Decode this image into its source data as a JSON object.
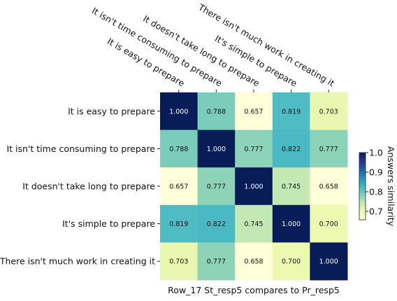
{
  "chart_data": {
    "type": "heatmap",
    "rows": [
      "It is easy to prepare",
      "It isn't time consuming to prepare",
      "It doesn't take long to prepare",
      "It's simple to prepare",
      "There isn't much work in creating it"
    ],
    "cols": [
      "It is easy to prepare",
      "It isn't time consuming to prepare",
      "It doesn't take long to prepare",
      "It's simple to prepare",
      "There isn't much work in creating it"
    ],
    "values": [
      [
        1.0,
        0.788,
        0.657,
        0.819,
        0.703
      ],
      [
        0.788,
        1.0,
        0.777,
        0.822,
        0.777
      ],
      [
        0.657,
        0.777,
        1.0,
        0.745,
        0.658
      ],
      [
        0.819,
        0.822,
        0.745,
        1.0,
        0.7
      ],
      [
        0.703,
        0.777,
        0.658,
        0.7,
        1.0
      ]
    ],
    "value_labels": [
      [
        "1.000",
        "0.788",
        "0.657",
        "0.819",
        "0.703"
      ],
      [
        "0.788",
        "1.000",
        "0.777",
        "0.822",
        "0.777"
      ],
      [
        "0.657",
        "0.777",
        "1.000",
        "0.745",
        "0.658"
      ],
      [
        "0.819",
        "0.822",
        "0.745",
        "1.000",
        "0.700"
      ],
      [
        "0.703",
        "0.777",
        "0.658",
        "0.700",
        "1.000"
      ]
    ],
    "xlabel": "Row_17 St_resp5 compares to Pr_resp5",
    "colorbar_label": "Answers similarity",
    "colorbar_ticks": [
      "0.7",
      "0.8",
      "0.9",
      "1.0"
    ],
    "colorbar_tick_values": [
      0.7,
      0.8,
      0.9,
      1.0
    ],
    "vmin": 0.657,
    "vmax": 1.0,
    "colormap": "YlGnBu",
    "x_tick_position": "top",
    "legend": "colorbar right"
  }
}
